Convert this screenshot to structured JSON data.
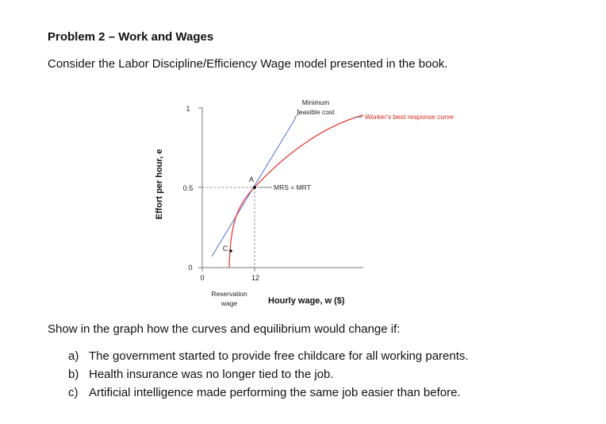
{
  "heading": "Problem 2 – Work and Wages",
  "intro": "Consider the Labor Discipline/Efficiency Wage model presented in the book.",
  "figure": {
    "y_axis_label": "Effort per hour, e",
    "x_axis_label": "Hourly wage, w ($)",
    "y_ticks": [
      "1",
      "0.5",
      "0"
    ],
    "x_ticks": [
      "0",
      "12"
    ],
    "curve_labels": {
      "feasible_line": [
        "Minimum",
        "feasible cost"
      ],
      "best_response": "Worker's best response curve",
      "tangency": "MRS = MRT"
    },
    "points": {
      "a": "A",
      "c": "C"
    },
    "reservation_wage": [
      "Reservation",
      "wage"
    ],
    "colors": {
      "curve": "#e8312b",
      "line": "#4a6fd6",
      "axis": "#7a7a7a",
      "dashed": "#9a9a9a",
      "label_red": "#d62a20"
    }
  },
  "prompt": "Show in the graph how the curves and equilibrium would change if:",
  "parts": [
    {
      "label": "a)",
      "text": "The government started to provide free childcare for all working parents."
    },
    {
      "label": "b)",
      "text": "Health insurance was no longer tied to the job."
    },
    {
      "label": "c)",
      "text": "Artificial intelligence made performing the same job easier than before."
    }
  ]
}
